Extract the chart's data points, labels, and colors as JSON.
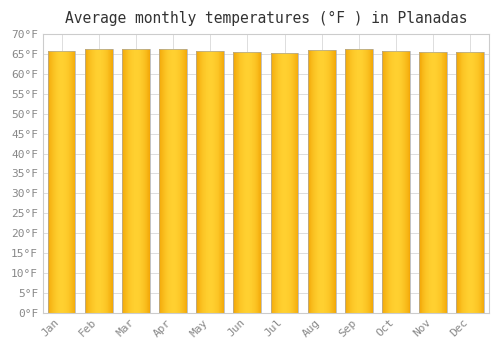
{
  "title": "Average monthly temperatures (°F ) in Planadas",
  "months": [
    "Jan",
    "Feb",
    "Mar",
    "Apr",
    "May",
    "Jun",
    "Jul",
    "Aug",
    "Sep",
    "Oct",
    "Nov",
    "Dec"
  ],
  "values": [
    65.8,
    66.2,
    66.2,
    66.2,
    65.8,
    65.5,
    65.3,
    66.0,
    66.4,
    65.7,
    65.5,
    65.5
  ],
  "bar_color_center": "#FFD000",
  "bar_color_edge": "#F0A000",
  "background_color": "#FFFFFF",
  "plot_bg_color": "#FFFFFF",
  "grid_color": "#DDDDDD",
  "ylim": [
    0,
    70
  ],
  "ytick_step": 5,
  "title_fontsize": 10.5,
  "tick_fontsize": 8,
  "tick_color": "#888888",
  "font_family": "monospace",
  "bar_edge_color": "#BBBBBB",
  "bar_width": 0.75
}
